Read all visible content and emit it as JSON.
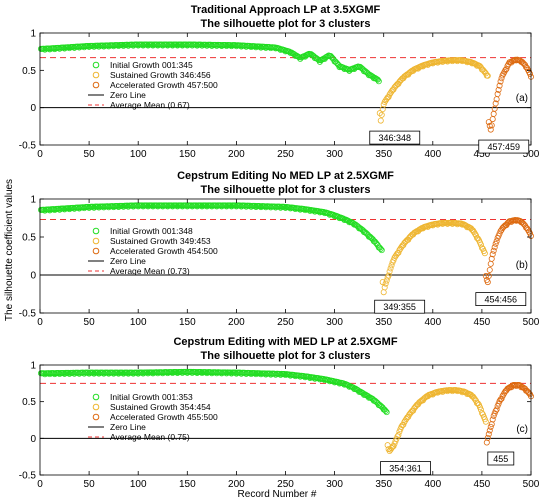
{
  "figure": {
    "ylabel": "The silhouette coefficient values",
    "xlabel": "Record Number #"
  },
  "chart_data": [
    {
      "type": "scatter",
      "panel_tag": "(a)",
      "title": "Traditional Approach LP at 3.5XGMF",
      "subtitle": "The silhouette plot for  3 clusters",
      "xlim": [
        0,
        500
      ],
      "ylim": [
        -0.5,
        1
      ],
      "xticks": [
        0,
        50,
        100,
        150,
        200,
        250,
        300,
        350,
        400,
        450,
        500
      ],
      "yticks": [
        -0.5,
        0,
        0.5,
        1
      ],
      "grid": false,
      "legend_position": "center-left",
      "legend": [
        {
          "label": "Initial Growth  001:345",
          "marker": "circle",
          "color": "#22dd22"
        },
        {
          "label": "Sustained Growth  346:456",
          "marker": "circle",
          "color": "#eeb530"
        },
        {
          "label": "Accelerated Growth  457:500",
          "marker": "circle",
          "color": "#dd6a10"
        },
        {
          "label": "Zero Line",
          "marker": "line",
          "color": "#000000"
        },
        {
          "label": "Average Mean (0.67)",
          "marker": "dashed",
          "color": "#ee3333"
        }
      ],
      "average_mean": 0.67,
      "series": [
        {
          "name": "Initial Growth",
          "range": [
            1,
            345
          ],
          "color": "#22dd22",
          "x": [
            1,
            50,
            100,
            150,
            200,
            240,
            255,
            265,
            275,
            285,
            295,
            305,
            315,
            325,
            335,
            345
          ],
          "y": [
            0.78,
            0.82,
            0.84,
            0.84,
            0.83,
            0.8,
            0.74,
            0.66,
            0.72,
            0.62,
            0.7,
            0.55,
            0.5,
            0.55,
            0.44,
            0.36
          ]
        },
        {
          "name": "Sustained Growth",
          "range": [
            346,
            456
          ],
          "color": "#eeb530",
          "x": [
            346,
            347,
            350,
            360,
            370,
            380,
            390,
            400,
            410,
            420,
            430,
            440,
            448,
            456
          ],
          "y": [
            -0.08,
            -0.18,
            0.05,
            0.25,
            0.4,
            0.5,
            0.56,
            0.6,
            0.62,
            0.63,
            0.63,
            0.6,
            0.55,
            0.42
          ]
        },
        {
          "name": "Accelerated Growth",
          "range": [
            457,
            500
          ],
          "color": "#dd6a10",
          "x": [
            457,
            459,
            465,
            470,
            478,
            485,
            490,
            495,
            500
          ],
          "y": [
            -0.2,
            -0.3,
            0.12,
            0.4,
            0.6,
            0.64,
            0.62,
            0.55,
            0.42
          ]
        }
      ],
      "annotations": [
        {
          "text": "346:348",
          "x": 347,
          "y": -0.18
        },
        {
          "text": "457:459",
          "x": 458,
          "y": -0.3
        }
      ]
    },
    {
      "type": "scatter",
      "panel_tag": "(b)",
      "title": "Cepstrum Editing No MED LP at 2.5XGMF",
      "subtitle": "The silhouette plot for  3 clusters",
      "xlim": [
        0,
        500
      ],
      "ylim": [
        -0.5,
        1
      ],
      "xticks": [
        0,
        50,
        100,
        150,
        200,
        250,
        300,
        350,
        400,
        450,
        500
      ],
      "yticks": [
        -0.5,
        0,
        0.5,
        1
      ],
      "grid": false,
      "legend_position": "center-left",
      "legend": [
        {
          "label": "Initial Growth  001:348",
          "marker": "circle",
          "color": "#22dd22"
        },
        {
          "label": "Sustained Growth  349:453",
          "marker": "circle",
          "color": "#eeb530"
        },
        {
          "label": "Accelerated Growth  454:500",
          "marker": "circle",
          "color": "#dd6a10"
        },
        {
          "label": "Zero Line",
          "marker": "line",
          "color": "#000000"
        },
        {
          "label": "Average Mean (0.73)",
          "marker": "dashed",
          "color": "#ee3333"
        }
      ],
      "average_mean": 0.73,
      "series": [
        {
          "name": "Initial Growth",
          "range": [
            1,
            348
          ],
          "color": "#22dd22",
          "x": [
            1,
            50,
            100,
            150,
            200,
            250,
            270,
            290,
            300,
            310,
            320,
            330,
            340,
            348
          ],
          "y": [
            0.85,
            0.89,
            0.91,
            0.91,
            0.91,
            0.89,
            0.86,
            0.82,
            0.78,
            0.73,
            0.67,
            0.57,
            0.45,
            0.32
          ]
        },
        {
          "name": "Sustained Growth",
          "range": [
            349,
            453
          ],
          "color": "#eeb530",
          "x": [
            349,
            350,
            352,
            360,
            370,
            380,
            390,
            400,
            410,
            420,
            430,
            440,
            447,
            453
          ],
          "y": [
            -0.1,
            -0.22,
            -0.12,
            0.2,
            0.4,
            0.54,
            0.62,
            0.66,
            0.68,
            0.68,
            0.67,
            0.6,
            0.45,
            0.28
          ]
        },
        {
          "name": "Accelerated Growth",
          "range": [
            454,
            500
          ],
          "color": "#dd6a10",
          "x": [
            454,
            456,
            460,
            465,
            470,
            478,
            485,
            490,
            495,
            500
          ],
          "y": [
            -0.02,
            -0.1,
            0.22,
            0.45,
            0.6,
            0.7,
            0.72,
            0.7,
            0.63,
            0.52
          ]
        }
      ],
      "annotations": [
        {
          "text": "349:355",
          "x": 352,
          "y": -0.2
        },
        {
          "text": "454:456",
          "x": 455,
          "y": -0.1
        }
      ]
    },
    {
      "type": "scatter",
      "panel_tag": "(c)",
      "title": "Cepstrum Editing with MED LP at 2.5XGMF",
      "subtitle": "The silhouette plot for  3 clusters",
      "xlim": [
        0,
        500
      ],
      "ylim": [
        -0.5,
        1
      ],
      "xticks": [
        0,
        50,
        100,
        150,
        200,
        250,
        300,
        350,
        400,
        450,
        500
      ],
      "yticks": [
        -0.5,
        0,
        0.5,
        1
      ],
      "grid": false,
      "legend_position": "center-left",
      "legend": [
        {
          "label": "Initial Growth  001:353",
          "marker": "circle",
          "color": "#22dd22"
        },
        {
          "label": "Sustained Growth  354:454",
          "marker": "circle",
          "color": "#eeb530"
        },
        {
          "label": "Accelerated Growth  455:500",
          "marker": "circle",
          "color": "#dd6a10"
        },
        {
          "label": "Zero Line",
          "marker": "line",
          "color": "#000000"
        },
        {
          "label": "Average Mean (0.75)",
          "marker": "dashed",
          "color": "#ee3333"
        }
      ],
      "average_mean": 0.75,
      "series": [
        {
          "name": "Initial Growth",
          "range": [
            1,
            353
          ],
          "color": "#22dd22",
          "x": [
            1,
            50,
            100,
            150,
            200,
            250,
            270,
            290,
            300,
            310,
            320,
            330,
            340,
            350,
            353
          ],
          "y": [
            0.88,
            0.89,
            0.89,
            0.9,
            0.89,
            0.87,
            0.84,
            0.8,
            0.77,
            0.74,
            0.68,
            0.6,
            0.52,
            0.4,
            0.35
          ]
        },
        {
          "name": "Sustained Growth",
          "range": [
            354,
            454
          ],
          "color": "#eeb530",
          "x": [
            354,
            356,
            361,
            368,
            375,
            385,
            395,
            405,
            415,
            425,
            432,
            440,
            447,
            454
          ],
          "y": [
            -0.1,
            -0.18,
            -0.08,
            0.15,
            0.3,
            0.47,
            0.58,
            0.63,
            0.65,
            0.65,
            0.63,
            0.58,
            0.45,
            0.22
          ]
        },
        {
          "name": "Accelerated Growth",
          "range": [
            455,
            500
          ],
          "color": "#dd6a10",
          "x": [
            455,
            457,
            462,
            468,
            475,
            482,
            488,
            494,
            500
          ],
          "y": [
            -0.05,
            0.05,
            0.3,
            0.5,
            0.66,
            0.72,
            0.72,
            0.67,
            0.58
          ]
        }
      ],
      "annotations": [
        {
          "text": "354:361",
          "x": 358,
          "y": -0.18
        },
        {
          "text": "455",
          "x": 455,
          "y": -0.05
        }
      ]
    }
  ]
}
